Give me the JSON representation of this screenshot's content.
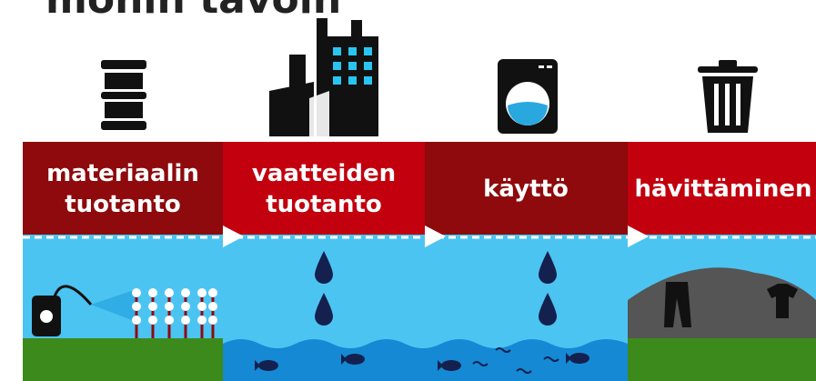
{
  "header": {
    "title": "monin tavoin"
  },
  "steps": [
    {
      "lines": [
        "materiaalin",
        "tuotanto"
      ]
    },
    {
      "lines": [
        "vaatteiden",
        "tuotanto"
      ]
    },
    {
      "lines": [
        "käyttö"
      ]
    },
    {
      "lines": [
        "hävittäminen"
      ]
    }
  ]
}
